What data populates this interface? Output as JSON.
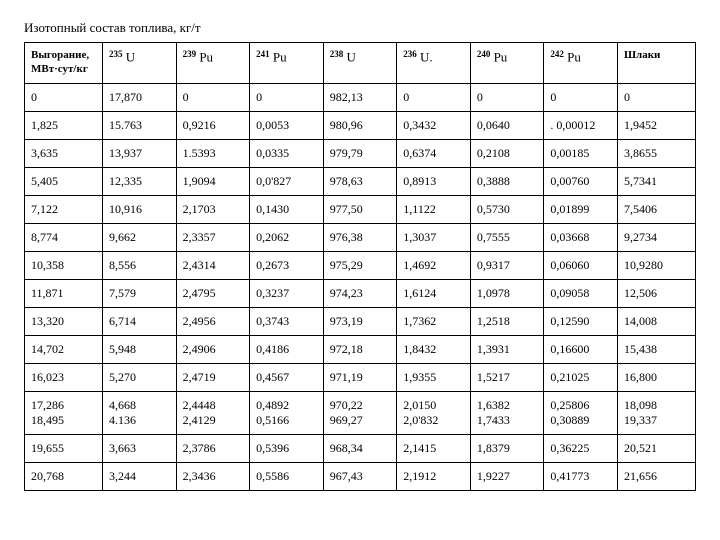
{
  "title": "Изотопный состав топлива, кг/т",
  "columns": [
    {
      "label": "Выгорание, МВт·сут/кг",
      "isotope": null
    },
    {
      "label": "U",
      "sup": "235"
    },
    {
      "label": "Pu",
      "sup": "239"
    },
    {
      "label": "Pu",
      "sup": "241"
    },
    {
      "label": "U",
      "sup": "238"
    },
    {
      "label": "U.",
      "sup": "236"
    },
    {
      "label": "Pu",
      "sup": "240"
    },
    {
      "label": "Pu",
      "sup": "242"
    },
    {
      "label": "Шлаки",
      "isotope": null
    }
  ],
  "rows": [
    [
      "0",
      "17,870",
      "0",
      "0",
      "982,13",
      "0",
      "0",
      "0",
      "0"
    ],
    [
      "1,825",
      "15.763",
      "0,9216",
      "0,0053",
      "980,96",
      "0,3432",
      "0,0640",
      ". 0,00012",
      "1,9452"
    ],
    [
      "3,635",
      "13,937",
      "1.5393",
      "0,0335",
      "979,79",
      "0,6374",
      "0,2108",
      "0,00185",
      "3,8655"
    ],
    [
      "5,405",
      "12,335",
      "1,9094",
      "0,0'827",
      "978,63",
      "0,8913",
      "0,3888",
      "0,00760",
      "5,7341"
    ],
    [
      "7,122",
      "10,916",
      "2,1703",
      "0,1430",
      "977,50",
      "1,1122",
      "0,5730",
      "0,01899",
      "7,5406"
    ],
    [
      "8,774",
      "9,662",
      "2,3357",
      "0,2062",
      "976,38",
      "1,3037",
      "0,7555",
      "0,03668",
      "9,2734"
    ],
    [
      "10,358",
      "8,556",
      "2,4314",
      "0,2673",
      "975,29",
      "1,4692",
      "0,9317",
      "0,06060",
      "10,9280"
    ],
    [
      "11,871",
      "7,579",
      "2,4795",
      "0,3237",
      "974,23",
      "1,6124",
      "1,0978",
      "0,09058",
      "12,506"
    ],
    [
      "13,320",
      "6,714",
      "2,4956",
      "0,3743",
      "973,19",
      "1,7362",
      "1,2518",
      "0,12590",
      "14,008"
    ],
    [
      "14,702",
      "5,948",
      "2,4906",
      "0,4186",
      "972,18",
      "1,8432",
      "1,3931",
      "0,16600",
      "15,438"
    ],
    [
      "16,023",
      "5,270",
      "2,4719",
      "0,4567",
      "971,19",
      "1,9355",
      "1,5217",
      "0,21025",
      "16,800"
    ],
    [
      "17,286\n18,495",
      "4,668\n4.136",
      "2,4448\n2,4129",
      "0,4892\n0,5166",
      "970,22\n969,27",
      "2,0150\n2,0'832",
      "1,6382\n1,7433",
      "0,25806\n0,30889",
      "18,098\n19,337"
    ],
    [
      "19,655",
      "3,663",
      "2,3786",
      "0,5396",
      "968,34",
      "2,1415",
      "1,8379",
      "0,36225",
      "20,521"
    ],
    [
      "20,768",
      "3,244",
      "2,3436",
      "0,5586",
      "967,43",
      "2,1912",
      "1,9227",
      "0,41773",
      "21,656"
    ]
  ]
}
